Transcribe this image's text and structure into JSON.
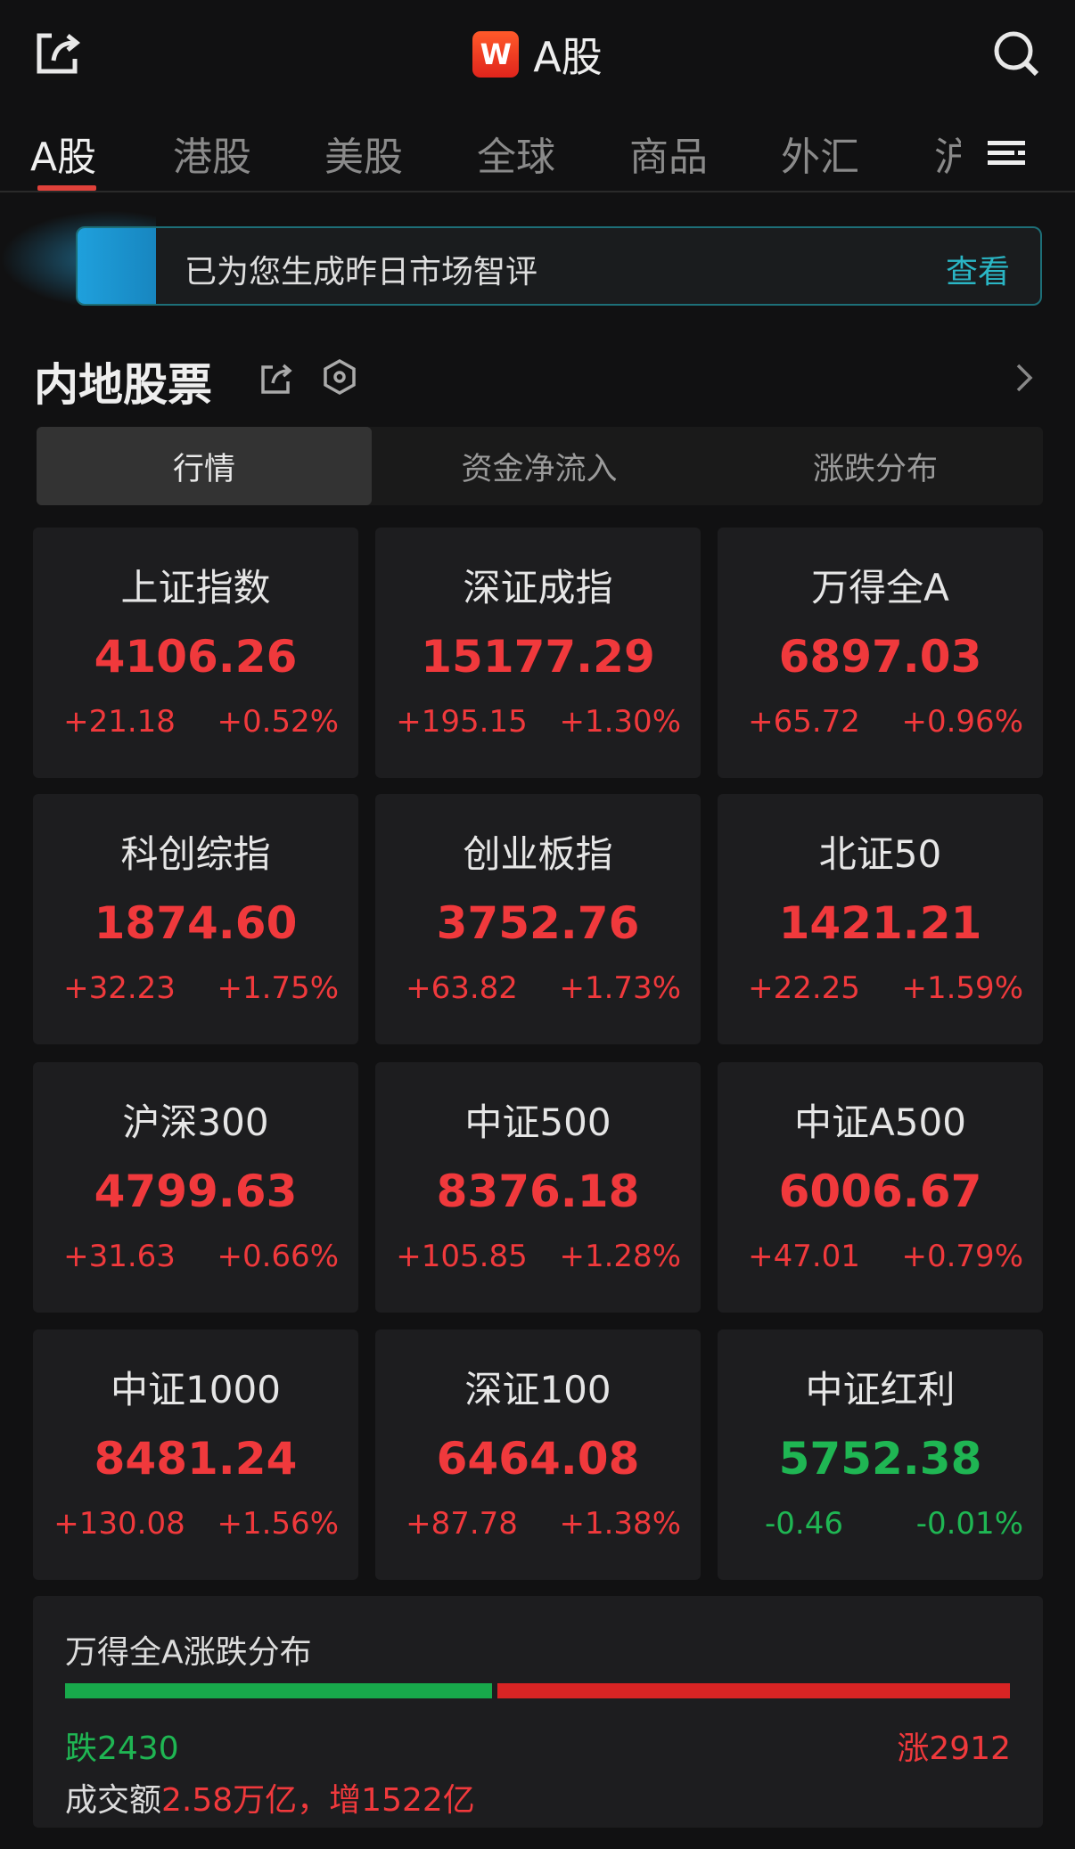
{
  "header": {
    "title": "A股",
    "logo_letter": "W",
    "share_icon": "share-icon",
    "search_icon": "search-icon"
  },
  "tabs": [
    {
      "label": "A股",
      "active": true
    },
    {
      "label": "港股"
    },
    {
      "label": "美股"
    },
    {
      "label": "全球"
    },
    {
      "label": "商品"
    },
    {
      "label": "外汇"
    },
    {
      "label": "沪"
    }
  ],
  "banner": {
    "text": "已为您生成昨日市场智评",
    "action": "查看"
  },
  "section": {
    "title": "内地股票"
  },
  "segments": [
    {
      "label": "行情",
      "active": true
    },
    {
      "label": "资金净流入"
    },
    {
      "label": "涨跌分布"
    }
  ],
  "indices": [
    {
      "name": "上证指数",
      "value": "4106.26",
      "change": "+21.18",
      "pct": "+0.52%",
      "dir": "up"
    },
    {
      "name": "深证成指",
      "value": "15177.29",
      "change": "+195.15",
      "pct": "+1.30%",
      "dir": "up"
    },
    {
      "name": "万得全A",
      "value": "6897.03",
      "change": "+65.72",
      "pct": "+0.96%",
      "dir": "up"
    },
    {
      "name": "科创综指",
      "value": "1874.60",
      "change": "+32.23",
      "pct": "+1.75%",
      "dir": "up"
    },
    {
      "name": "创业板指",
      "value": "3752.76",
      "change": "+63.82",
      "pct": "+1.73%",
      "dir": "up"
    },
    {
      "name": "北证50",
      "value": "1421.21",
      "change": "+22.25",
      "pct": "+1.59%",
      "dir": "up"
    },
    {
      "name": "沪深300",
      "value": "4799.63",
      "change": "+31.63",
      "pct": "+0.66%",
      "dir": "up"
    },
    {
      "name": "中证500",
      "value": "8376.18",
      "change": "+105.85",
      "pct": "+1.28%",
      "dir": "up"
    },
    {
      "name": "中证A500",
      "value": "6006.67",
      "change": "+47.01",
      "pct": "+0.79%",
      "dir": "up"
    },
    {
      "name": "中证1000",
      "value": "8481.24",
      "change": "+130.08",
      "pct": "+1.56%",
      "dir": "up"
    },
    {
      "name": "深证100",
      "value": "6464.08",
      "change": "+87.78",
      "pct": "+1.38%",
      "dir": "up"
    },
    {
      "name": "中证红利",
      "value": "5752.38",
      "change": "-0.46",
      "pct": "-0.01%",
      "dir": "down"
    }
  ],
  "distribution": {
    "title": "万得全A涨跌分布",
    "down_label": "跌2430",
    "up_label": "涨2912",
    "down": 2430,
    "up": 2912,
    "turnover_label": "成交额",
    "turnover_value": "2.58万亿，增1522亿"
  },
  "colors": {
    "up": "#f0393c",
    "down": "#1fb653",
    "accent": "#e0413a",
    "link": "#2ab6c5"
  }
}
